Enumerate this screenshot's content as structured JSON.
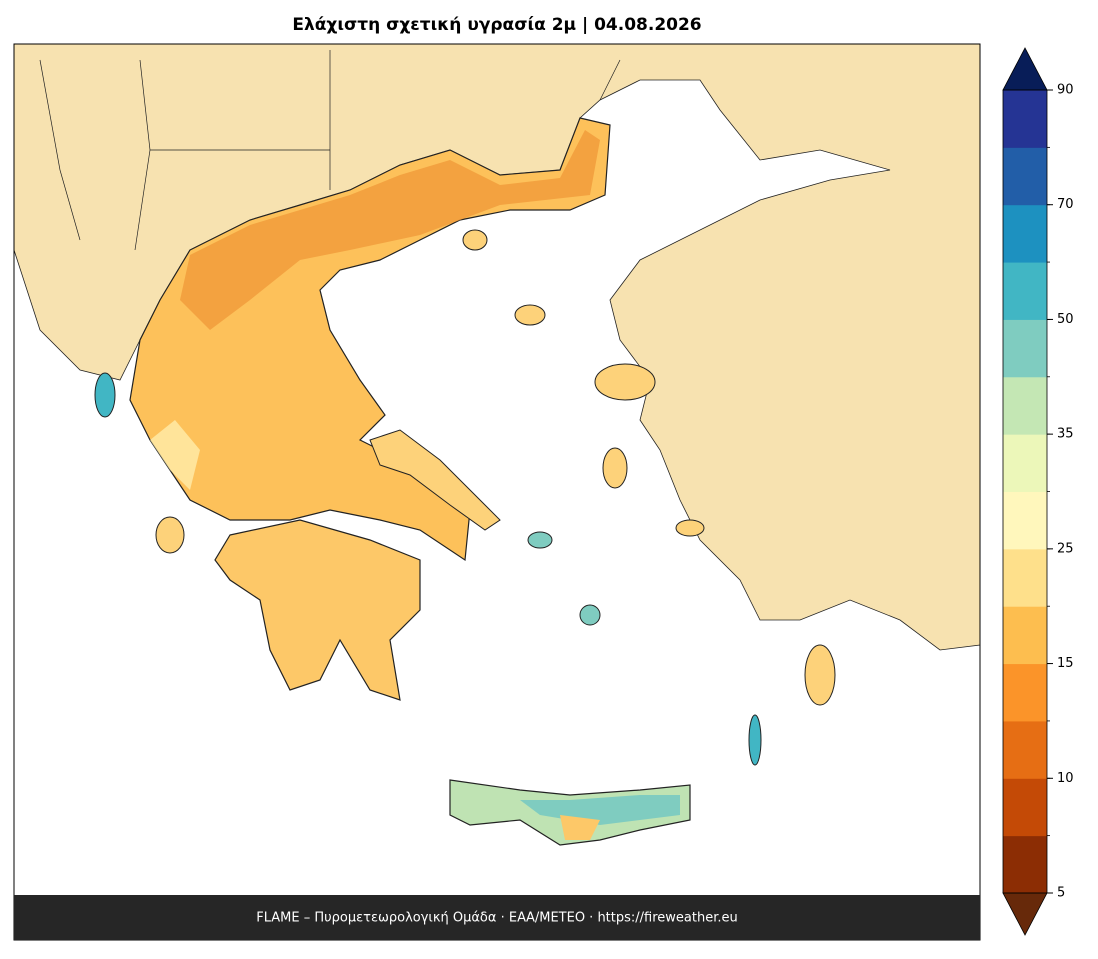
{
  "title": "Ελάχιστη σχετική υγρασία 2μ  |  04.08.2026",
  "footer": "FLAME – Πυρομετεωρολογική Ομάδα · ΕΑΑ/METEO · https://fireweather.eu",
  "colorbar": {
    "levels": [
      5,
      8,
      10,
      12,
      15,
      20,
      25,
      30,
      35,
      40,
      50,
      60,
      70,
      80,
      90
    ],
    "ticks": [
      5,
      10,
      15,
      25,
      35,
      50,
      70,
      90
    ],
    "colors": [
      "#8c2d04",
      "#c44a06",
      "#e66e14",
      "#fb9429",
      "#fdbe4f",
      "#fee08b",
      "#fff7bc",
      "#ecf7b9",
      "#c4e7b4",
      "#7fccc0",
      "#41b6c4",
      "#1d91c0",
      "#225ea8",
      "#253494"
    ],
    "under_color": "#67290a",
    "over_color": "#081d58"
  }
}
